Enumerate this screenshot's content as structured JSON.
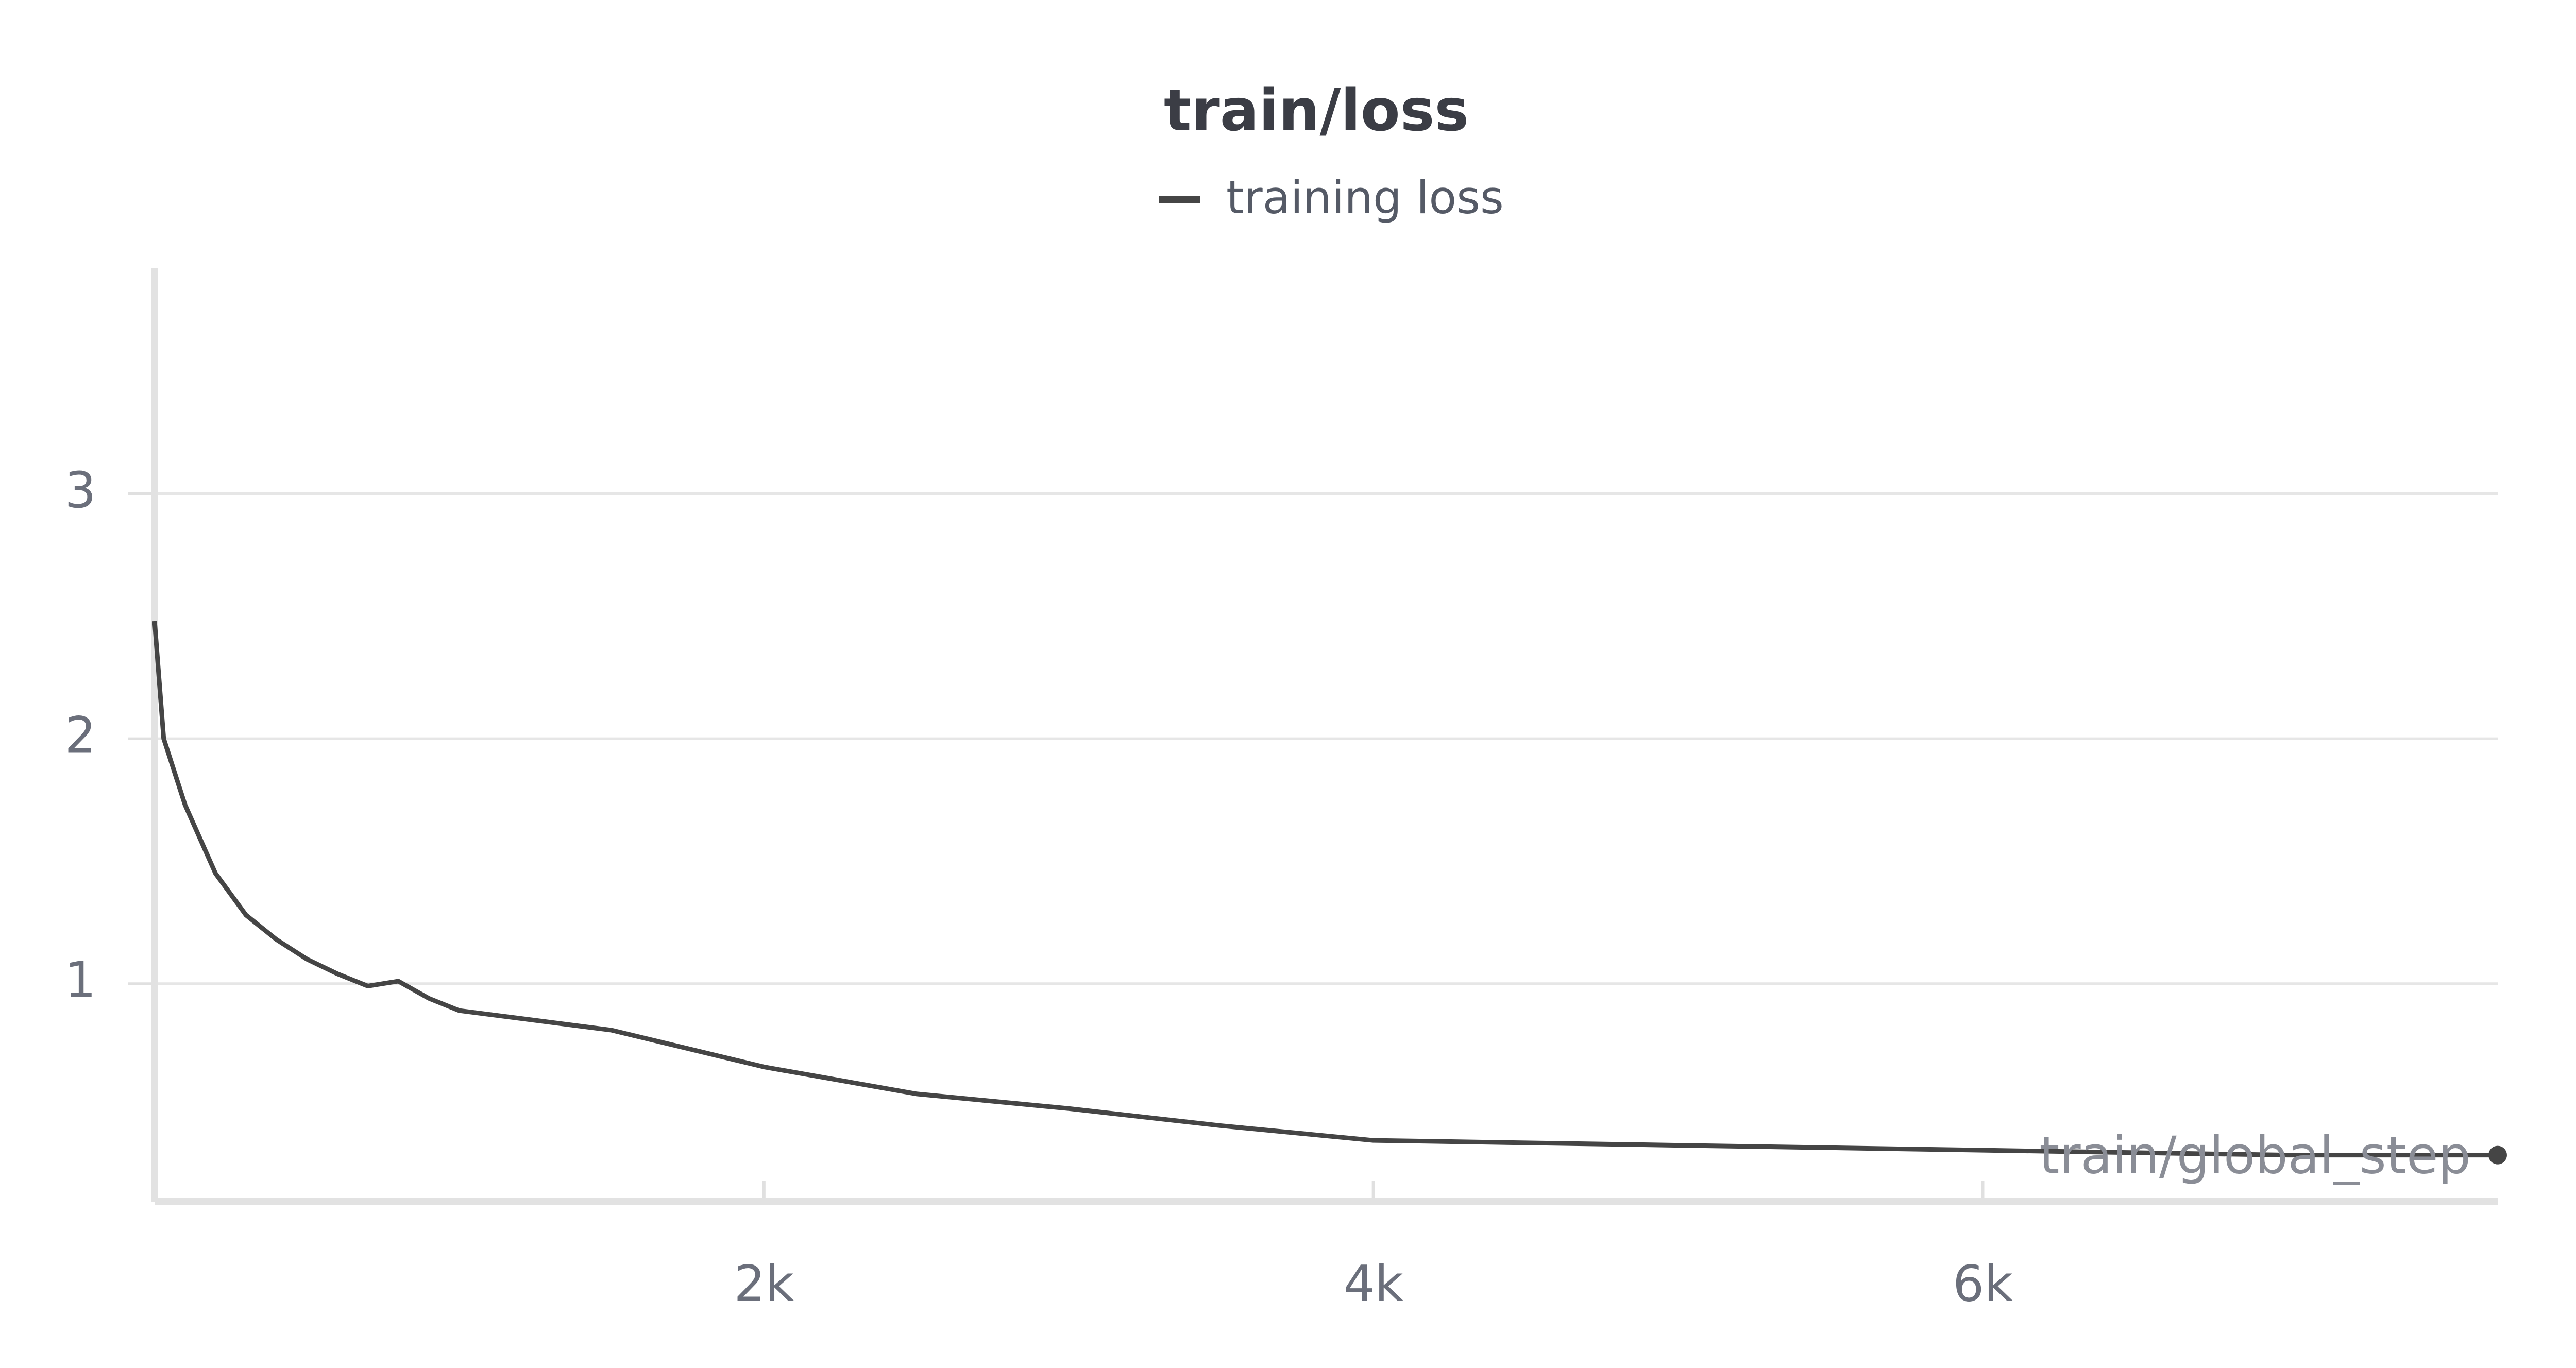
{
  "chart_data": {
    "type": "line",
    "title": "train/loss",
    "x_label": "train/global_step",
    "x": [
      0,
      30,
      100,
      200,
      300,
      400,
      500,
      600,
      700,
      800,
      900,
      1000,
      1500,
      2000,
      2500,
      3000,
      3500,
      4000,
      5000,
      6000,
      7000,
      7690
    ],
    "series": [
      {
        "name": "training loss",
        "color": "#454545",
        "values": [
          2.48,
          2.0,
          1.73,
          1.45,
          1.28,
          1.18,
          1.1,
          1.04,
          0.99,
          1.01,
          0.94,
          0.89,
          0.81,
          0.66,
          0.55,
          0.49,
          0.42,
          0.36,
          0.34,
          0.32,
          0.3,
          0.3
        ]
      }
    ],
    "xlim": [
      0,
      7690
    ],
    "ylim": [
      0.11,
      3.92
    ],
    "xticks": [
      {
        "value": 2000,
        "label": "2k"
      },
      {
        "value": 4000,
        "label": "4k"
      },
      {
        "value": 6000,
        "label": "6k"
      }
    ],
    "yticks": [
      1,
      2,
      3
    ],
    "grid": true
  }
}
